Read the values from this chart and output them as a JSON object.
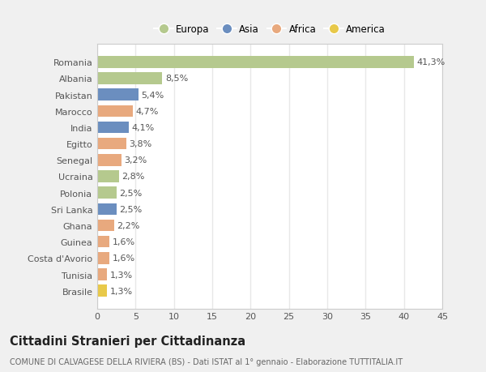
{
  "countries": [
    "Romania",
    "Albania",
    "Pakistan",
    "Marocco",
    "India",
    "Egitto",
    "Senegal",
    "Ucraina",
    "Polonia",
    "Sri Lanka",
    "Ghana",
    "Guinea",
    "Costa d'Avorio",
    "Tunisia",
    "Brasile"
  ],
  "values": [
    41.3,
    8.5,
    5.4,
    4.7,
    4.1,
    3.8,
    3.2,
    2.8,
    2.5,
    2.5,
    2.2,
    1.6,
    1.6,
    1.3,
    1.3
  ],
  "labels": [
    "41,3%",
    "8,5%",
    "5,4%",
    "4,7%",
    "4,1%",
    "3,8%",
    "3,2%",
    "2,8%",
    "2,5%",
    "2,5%",
    "2,2%",
    "1,6%",
    "1,6%",
    "1,3%",
    "1,3%"
  ],
  "colors": [
    "#b5c98e",
    "#b5c98e",
    "#6b8ebf",
    "#e8a97e",
    "#6b8ebf",
    "#e8a97e",
    "#e8a97e",
    "#b5c98e",
    "#b5c98e",
    "#6b8ebf",
    "#e8a97e",
    "#e8a97e",
    "#e8a97e",
    "#e8a97e",
    "#e8c94a"
  ],
  "legend_labels": [
    "Europa",
    "Asia",
    "Africa",
    "America"
  ],
  "legend_colors": [
    "#b5c98e",
    "#6b8ebf",
    "#e8a97e",
    "#e8c94a"
  ],
  "title": "Cittadini Stranieri per Cittadinanza",
  "subtitle": "COMUNE DI CALVAGESE DELLA RIVIERA (BS) - Dati ISTAT al 1° gennaio - Elaborazione TUTTITALIA.IT",
  "xlim": [
    0,
    45
  ],
  "xticks": [
    0,
    5,
    10,
    15,
    20,
    25,
    30,
    35,
    40,
    45
  ],
  "bg_color": "#f0f0f0",
  "plot_bg_color": "#ffffff",
  "grid_color": "#e8e8e8",
  "label_fontsize": 8,
  "tick_fontsize": 8,
  "title_fontsize": 10.5,
  "subtitle_fontsize": 7,
  "bar_height": 0.72
}
